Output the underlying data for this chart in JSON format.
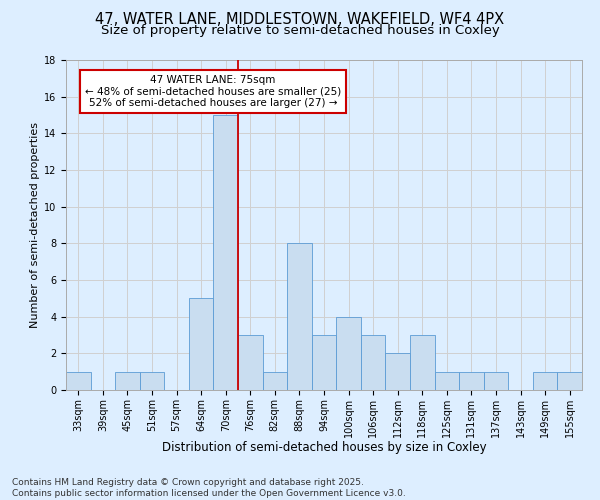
{
  "title1": "47, WATER LANE, MIDDLESTOWN, WAKEFIELD, WF4 4PX",
  "title2": "Size of property relative to semi-detached houses in Coxley",
  "xlabel": "Distribution of semi-detached houses by size in Coxley",
  "ylabel": "Number of semi-detached properties",
  "bins": [
    "33sqm",
    "39sqm",
    "45sqm",
    "51sqm",
    "57sqm",
    "64sqm",
    "70sqm",
    "76sqm",
    "82sqm",
    "88sqm",
    "94sqm",
    "100sqm",
    "106sqm",
    "112sqm",
    "118sqm",
    "125sqm",
    "131sqm",
    "137sqm",
    "143sqm",
    "149sqm",
    "155sqm"
  ],
  "values": [
    1,
    0,
    1,
    1,
    0,
    5,
    15,
    3,
    1,
    8,
    3,
    4,
    3,
    2,
    3,
    1,
    1,
    1,
    0,
    1,
    1
  ],
  "bar_color": "#c9ddf0",
  "bar_edge_color": "#5b9bd5",
  "grid_color": "#d0d0d0",
  "background_color": "#ddeeff",
  "vline_color": "#cc0000",
  "annotation_text": "47 WATER LANE: 75sqm\n← 48% of semi-detached houses are smaller (25)\n52% of semi-detached houses are larger (27) →",
  "annotation_box_color": "#ffffff",
  "annotation_box_edge": "#cc0000",
  "footer": "Contains HM Land Registry data © Crown copyright and database right 2025.\nContains public sector information licensed under the Open Government Licence v3.0.",
  "ylim": [
    0,
    18
  ],
  "yticks": [
    0,
    2,
    4,
    6,
    8,
    10,
    12,
    14,
    16,
    18
  ],
  "title1_fontsize": 10.5,
  "title2_fontsize": 9.5,
  "xlabel_fontsize": 8.5,
  "ylabel_fontsize": 8,
  "tick_fontsize": 7,
  "annotation_fontsize": 7.5,
  "footer_fontsize": 6.5
}
